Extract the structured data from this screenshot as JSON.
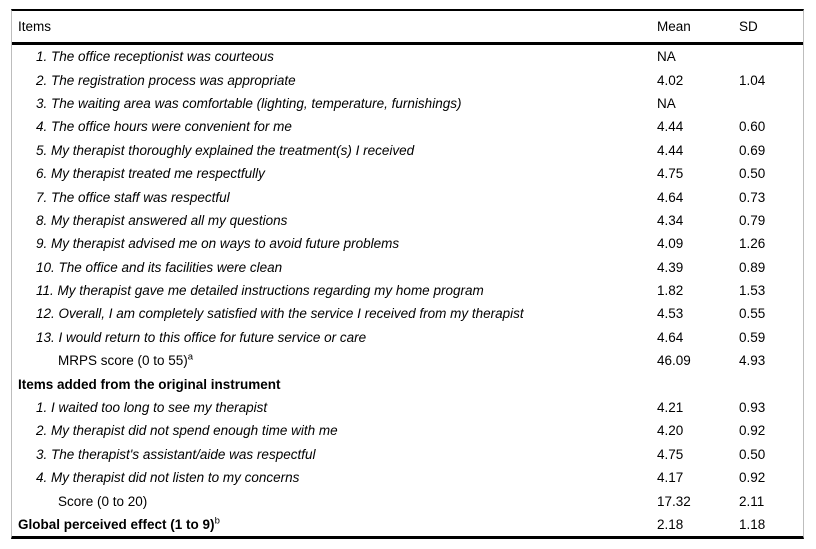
{
  "colors": {
    "background": "#ffffff",
    "text": "#000000",
    "rule_black": "#000000",
    "rule_side_gray": "#bdbdbd"
  },
  "table": {
    "columns": {
      "items": "Items",
      "mean": "Mean",
      "sd": "SD"
    },
    "rows": [
      {
        "label": "1. The office receptionist was courteous",
        "style": "item",
        "mean": "NA",
        "sd": ""
      },
      {
        "label": "2. The registration process was appropriate",
        "style": "item",
        "mean": "4.02",
        "sd": "1.04"
      },
      {
        "label": "3. The waiting area was comfortable (lighting, temperature, furnishings)",
        "style": "item",
        "mean": "NA",
        "sd": ""
      },
      {
        "label": "4. The office hours were convenient for me",
        "style": "item",
        "mean": "4.44",
        "sd": "0.60"
      },
      {
        "label": "5. My therapist thoroughly explained the treatment(s) I received",
        "style": "item",
        "mean": "4.44",
        "sd": "0.69"
      },
      {
        "label": "6. My therapist treated me respectfully",
        "style": "item",
        "mean": "4.75",
        "sd": "0.50"
      },
      {
        "label": "7. The office staff was respectful",
        "style": "item",
        "mean": "4.64",
        "sd": "0.73"
      },
      {
        "label": "8. My therapist answered all my questions",
        "style": "item",
        "mean": "4.34",
        "sd": "0.79"
      },
      {
        "label": "9. My therapist advised me on ways to avoid future problems",
        "style": "item",
        "mean": "4.09",
        "sd": "1.26"
      },
      {
        "label": "10. The office and its facilities were clean",
        "style": "item",
        "mean": "4.39",
        "sd": "0.89"
      },
      {
        "label": "11. My therapist gave me detailed instructions regarding my home program",
        "style": "item",
        "mean": "1.82",
        "sd": "1.53"
      },
      {
        "label": "12. Overall, I am completely satisfied with the service I received from my therapist",
        "style": "item",
        "mean": "4.53",
        "sd": "0.55"
      },
      {
        "label": "13. I would return to this office for future service or care",
        "style": "item",
        "mean": "4.64",
        "sd": "0.59"
      },
      {
        "label": "MRPS score (0 to 55)",
        "sup": "a",
        "style": "score",
        "mean": "46.09",
        "sd": "4.93"
      },
      {
        "label": "Items added from the original instrument",
        "style": "section",
        "mean": "",
        "sd": ""
      },
      {
        "label": "1. I waited too long to see my therapist",
        "style": "item",
        "mean": "4.21",
        "sd": "0.93"
      },
      {
        "label": "2. My therapist did not spend enough time with me",
        "style": "item",
        "mean": "4.20",
        "sd": "0.92"
      },
      {
        "label": "3. The therapist's assistant/aide was respectful",
        "style": "item",
        "mean": "4.75",
        "sd": "0.50"
      },
      {
        "label": "4. My therapist did not listen to my concerns",
        "style": "item",
        "mean": "4.17",
        "sd": "0.92"
      },
      {
        "label": "Score (0 to 20)",
        "style": "score",
        "mean": "17.32",
        "sd": "2.11"
      },
      {
        "label": "Global perceived effect (1 to 9)",
        "sup": "b",
        "style": "bold",
        "mean": "2.18",
        "sd": "1.18"
      }
    ]
  }
}
